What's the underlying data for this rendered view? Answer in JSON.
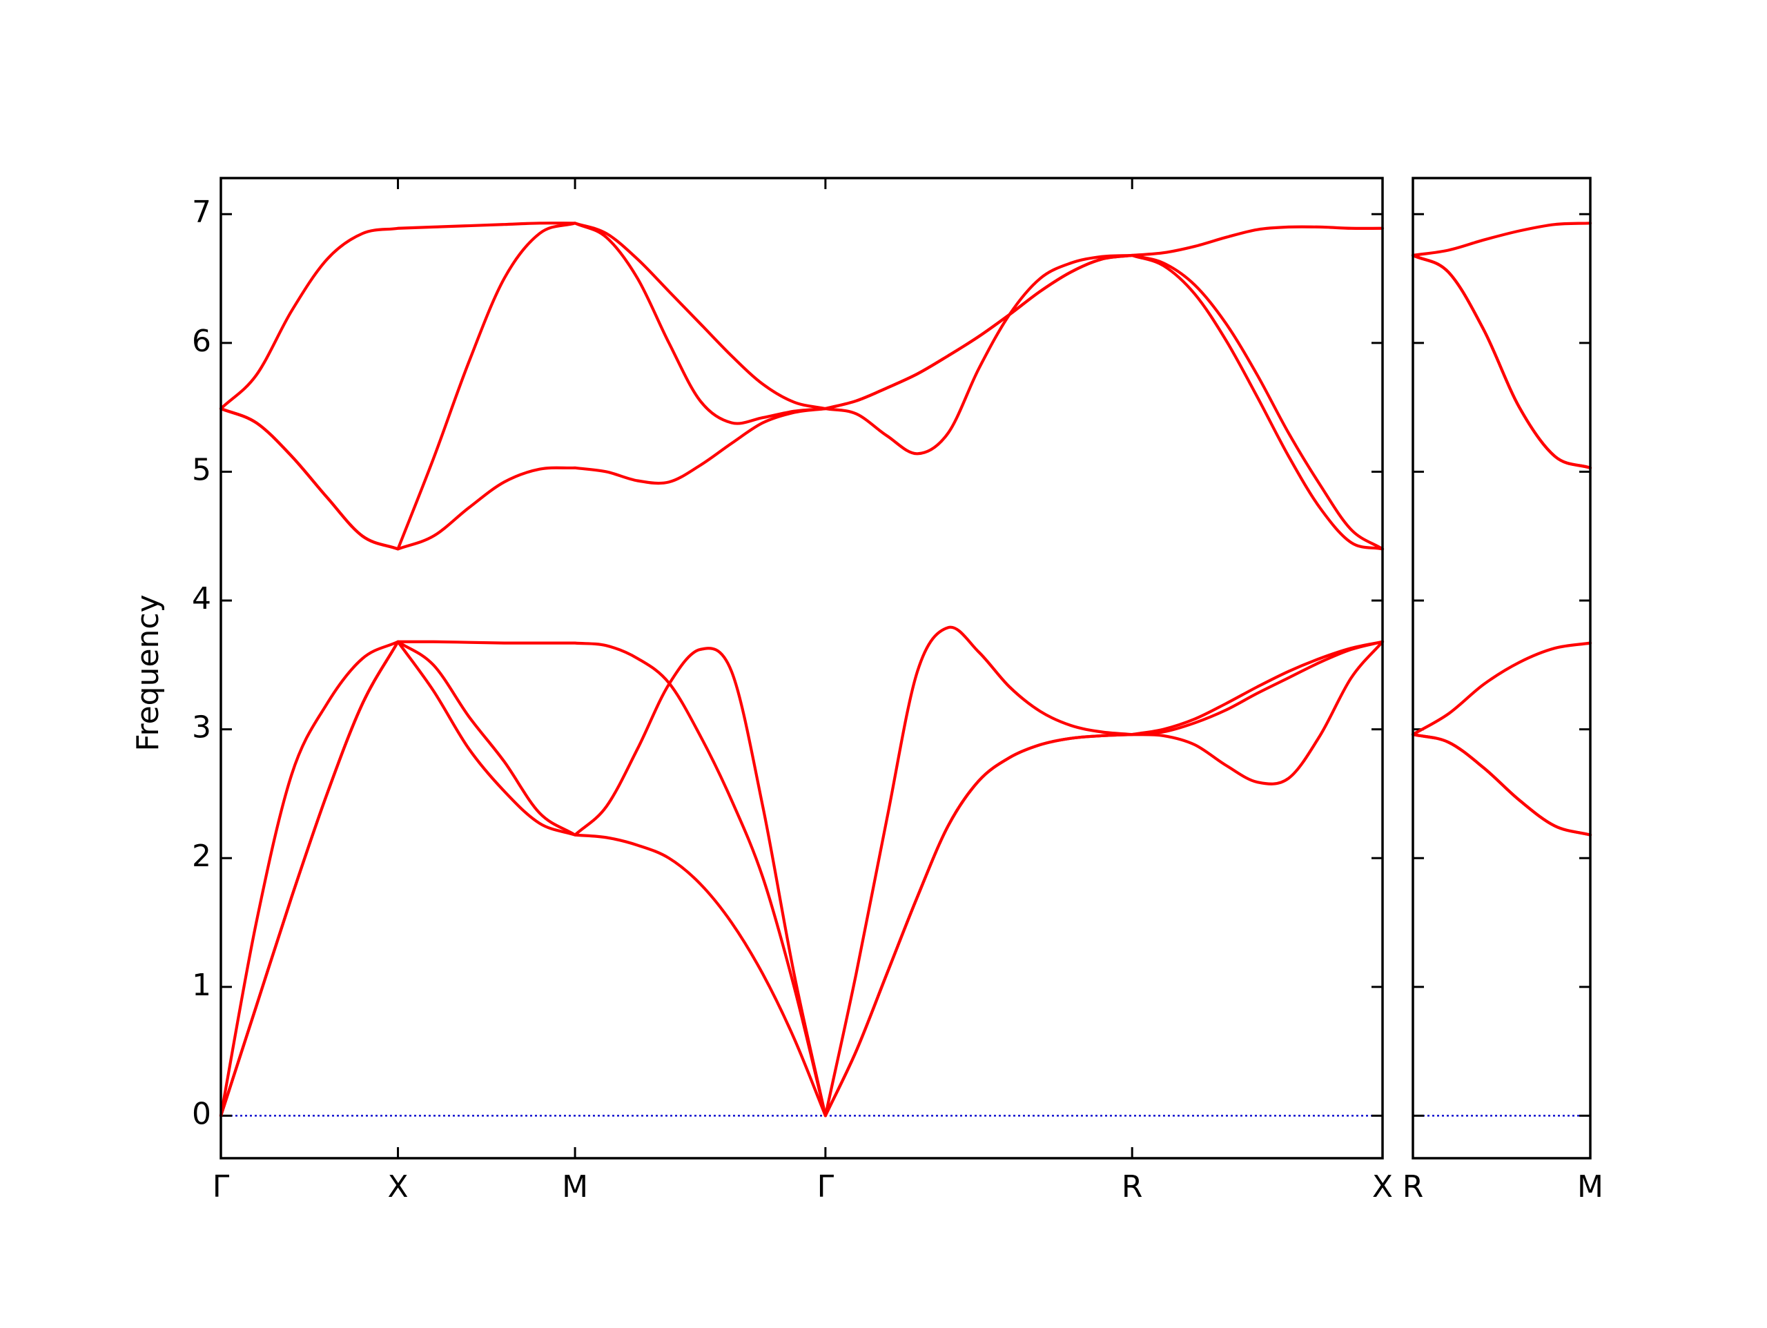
{
  "chart_data": [
    {
      "type": "line",
      "ylabel": "Frequency",
      "x": [
        0,
        0.1,
        0.2,
        0.3,
        0.4,
        0.5,
        0.6,
        0.7,
        0.8,
        0.9,
        1.0,
        1.0884,
        1.1768,
        1.2652,
        1.3536,
        1.4419,
        1.5303,
        1.6187,
        1.7071,
        1.7937,
        1.8803,
        1.9669,
        2.0535,
        2.1401,
        2.2267,
        2.3133,
        2.3999,
        2.4865,
        2.5731,
        2.6615,
        2.7499,
        2.8383,
        2.9267,
        3.015,
        3.1034,
        3.1918,
        3.2802
      ],
      "xlim": [
        0,
        3.2802
      ],
      "xticks": [
        {
          "value": 0,
          "label": "Γ"
        },
        {
          "value": 0.5,
          "label": "X"
        },
        {
          "value": 1.0,
          "label": "M"
        },
        {
          "value": 1.7071,
          "label": "Γ"
        },
        {
          "value": 2.5731,
          "label": "R"
        },
        {
          "value": 3.2802,
          "label": "X"
        }
      ],
      "ylim": [
        -0.33,
        7.28
      ],
      "yticks": [
        0,
        1,
        2,
        3,
        4,
        5,
        6,
        7
      ],
      "series": [
        {
          "color": "#ff0000",
          "values": [
            0,
            0.85,
            1.7,
            2.5,
            3.2,
            3.68,
            3.3,
            2.85,
            2.52,
            2.27,
            2.18,
            2.16,
            2.1,
            2.0,
            1.8,
            1.5,
            1.1,
            0.6,
            0,
            0.5,
            1.1,
            1.7,
            2.25,
            2.6,
            2.78,
            2.88,
            2.93,
            2.95,
            2.96,
            2.95,
            2.88,
            2.72,
            2.59,
            2.62,
            2.95,
            3.4,
            3.68
          ]
        },
        {
          "color": "#ff0000",
          "values": [
            0,
            0.85,
            1.7,
            2.5,
            3.2,
            3.68,
            3.5,
            3.1,
            2.75,
            2.35,
            2.18,
            2.4,
            2.85,
            3.35,
            3.62,
            3.45,
            2.4,
            1.1,
            0,
            0.5,
            1.1,
            1.7,
            2.25,
            2.6,
            2.78,
            2.88,
            2.93,
            2.95,
            2.96,
            2.98,
            3.05,
            3.15,
            3.28,
            3.4,
            3.52,
            3.62,
            3.68
          ]
        },
        {
          "color": "#ff0000",
          "values": [
            0,
            1.5,
            2.65,
            3.2,
            3.55,
            3.68,
            3.68,
            3.675,
            3.67,
            3.67,
            3.67,
            3.65,
            3.55,
            3.36,
            2.95,
            2.45,
            1.85,
            1.0,
            0,
            1.1,
            2.3,
            3.45,
            3.79,
            3.6,
            3.33,
            3.14,
            3.03,
            2.98,
            2.96,
            3.0,
            3.08,
            3.2,
            3.33,
            3.45,
            3.55,
            3.63,
            3.68
          ]
        },
        {
          "color": "#ff0000",
          "values": [
            5.49,
            5.38,
            5.12,
            4.8,
            4.5,
            4.4,
            4.5,
            4.72,
            4.92,
            5.02,
            5.03,
            5.0,
            4.93,
            4.92,
            5.05,
            5.22,
            5.38,
            5.46,
            5.49,
            5.45,
            5.28,
            5.14,
            5.3,
            5.8,
            6.22,
            6.5,
            6.62,
            6.67,
            6.68,
            6.6,
            6.38,
            6.02,
            5.58,
            5.12,
            4.72,
            4.45,
            4.4
          ]
        },
        {
          "color": "#ff0000",
          "values": [
            5.49,
            5.38,
            5.12,
            4.8,
            4.5,
            4.4,
            5.1,
            5.85,
            6.5,
            6.85,
            6.93,
            6.82,
            6.5,
            6.0,
            5.55,
            5.38,
            5.42,
            5.47,
            5.49,
            5.55,
            5.65,
            5.76,
            5.9,
            6.05,
            6.22,
            6.4,
            6.55,
            6.65,
            6.68,
            6.62,
            6.45,
            6.15,
            5.75,
            5.3,
            4.9,
            4.55,
            4.4
          ]
        },
        {
          "color": "#ff0000",
          "values": [
            5.49,
            5.75,
            6.25,
            6.65,
            6.85,
            6.89,
            6.9,
            6.91,
            6.92,
            6.93,
            6.93,
            6.85,
            6.65,
            6.4,
            6.15,
            5.9,
            5.68,
            5.54,
            5.49,
            5.55,
            5.65,
            5.76,
            5.9,
            6.05,
            6.22,
            6.4,
            6.55,
            6.65,
            6.68,
            6.7,
            6.75,
            6.82,
            6.88,
            6.9,
            6.9,
            6.89,
            6.89
          ]
        }
      ]
    },
    {
      "type": "line",
      "x": [
        3.2802,
        3.3802,
        3.4802,
        3.5802,
        3.6802,
        3.7802
      ],
      "xlim": [
        3.2802,
        3.7802
      ],
      "xticks": [
        {
          "value": 3.2802,
          "label": "R"
        },
        {
          "value": 3.7802,
          "label": "M"
        }
      ],
      "ylim": [
        -0.33,
        7.28
      ],
      "series": [
        {
          "color": "#ff0000",
          "values": [
            2.96,
            2.9,
            2.7,
            2.45,
            2.25,
            2.18
          ]
        },
        {
          "color": "#ff0000",
          "values": [
            2.96,
            2.9,
            2.7,
            2.45,
            2.25,
            2.18
          ]
        },
        {
          "color": "#ff0000",
          "values": [
            2.96,
            3.12,
            3.35,
            3.52,
            3.63,
            3.67
          ]
        },
        {
          "color": "#ff0000",
          "values": [
            6.68,
            6.55,
            6.1,
            5.5,
            5.12,
            5.03
          ]
        },
        {
          "color": "#ff0000",
          "values": [
            6.68,
            6.55,
            6.1,
            5.5,
            5.12,
            5.03
          ]
        },
        {
          "color": "#ff0000",
          "values": [
            6.68,
            6.72,
            6.8,
            6.87,
            6.92,
            6.93
          ]
        }
      ]
    }
  ]
}
